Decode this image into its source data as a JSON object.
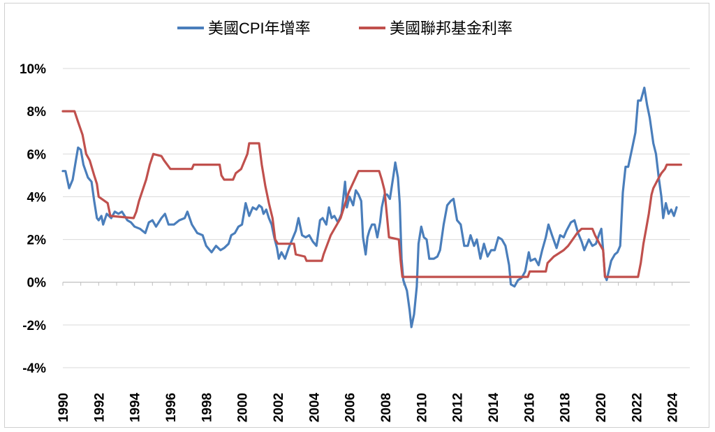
{
  "chart_data": {
    "type": "line",
    "title": "",
    "xlabel": "",
    "ylabel": "",
    "xlim": [
      1990,
      2025
    ],
    "ylim": [
      -4,
      10
    ],
    "y_ticks": [
      -4,
      -2,
      0,
      2,
      4,
      6,
      8,
      10
    ],
    "y_tick_labels": [
      "-4%",
      "-2%",
      "0%",
      "2%",
      "4%",
      "6%",
      "8%",
      "10%"
    ],
    "x_ticks": [
      1990,
      1992,
      1994,
      1996,
      1998,
      2000,
      2002,
      2004,
      2006,
      2008,
      2010,
      2012,
      2014,
      2016,
      2018,
      2020,
      2022,
      2024
    ],
    "x_tick_labels": [
      "1990",
      "1992",
      "1994",
      "1996",
      "1998",
      "2000",
      "2002",
      "2004",
      "2006",
      "2008",
      "2010",
      "2012",
      "2014",
      "2016",
      "2018",
      "2020",
      "2022",
      "2024"
    ],
    "grid": "horizontal",
    "legend": "top-center",
    "series": [
      {
        "name": "美國CPI年增率",
        "color": "#4a7ebb",
        "points": [
          [
            1990.0,
            5.2
          ],
          [
            1990.15,
            5.2
          ],
          [
            1990.35,
            4.4
          ],
          [
            1990.55,
            4.8
          ],
          [
            1990.75,
            5.8
          ],
          [
            1990.85,
            6.3
          ],
          [
            1991.0,
            6.2
          ],
          [
            1991.15,
            5.5
          ],
          [
            1991.4,
            4.9
          ],
          [
            1991.6,
            4.7
          ],
          [
            1991.75,
            3.8
          ],
          [
            1991.9,
            3.0
          ],
          [
            1992.0,
            2.9
          ],
          [
            1992.15,
            3.1
          ],
          [
            1992.25,
            2.7
          ],
          [
            1992.45,
            3.2
          ],
          [
            1992.7,
            3.0
          ],
          [
            1992.9,
            3.3
          ],
          [
            1993.1,
            3.2
          ],
          [
            1993.3,
            3.3
          ],
          [
            1993.6,
            2.9
          ],
          [
            1993.8,
            2.8
          ],
          [
            1994.0,
            2.6
          ],
          [
            1994.3,
            2.5
          ],
          [
            1994.6,
            2.3
          ],
          [
            1994.8,
            2.8
          ],
          [
            1995.0,
            2.9
          ],
          [
            1995.2,
            2.6
          ],
          [
            1995.5,
            3.0
          ],
          [
            1995.7,
            3.2
          ],
          [
            1995.9,
            2.7
          ],
          [
            1996.2,
            2.7
          ],
          [
            1996.5,
            2.9
          ],
          [
            1996.8,
            3.0
          ],
          [
            1996.95,
            3.3
          ],
          [
            1997.2,
            2.7
          ],
          [
            1997.5,
            2.3
          ],
          [
            1997.8,
            2.2
          ],
          [
            1998.0,
            1.7
          ],
          [
            1998.3,
            1.4
          ],
          [
            1998.55,
            1.7
          ],
          [
            1998.8,
            1.5
          ],
          [
            1999.0,
            1.6
          ],
          [
            1999.25,
            1.8
          ],
          [
            1999.4,
            2.2
          ],
          [
            1999.6,
            2.3
          ],
          [
            1999.8,
            2.6
          ],
          [
            2000.0,
            2.7
          ],
          [
            2000.2,
            3.7
          ],
          [
            2000.4,
            3.1
          ],
          [
            2000.6,
            3.5
          ],
          [
            2000.8,
            3.4
          ],
          [
            2000.95,
            3.6
          ],
          [
            2001.1,
            3.5
          ],
          [
            2001.2,
            3.2
          ],
          [
            2001.35,
            3.4
          ],
          [
            2001.5,
            3.0
          ],
          [
            2001.65,
            2.7
          ],
          [
            2001.8,
            2.1
          ],
          [
            2001.95,
            1.6
          ],
          [
            2002.05,
            1.1
          ],
          [
            2002.2,
            1.4
          ],
          [
            2002.4,
            1.1
          ],
          [
            2002.6,
            1.6
          ],
          [
            2002.8,
            2.0
          ],
          [
            2003.0,
            2.4
          ],
          [
            2003.15,
            3.0
          ],
          [
            2003.35,
            2.2
          ],
          [
            2003.55,
            2.1
          ],
          [
            2003.75,
            2.2
          ],
          [
            2003.95,
            1.9
          ],
          [
            2004.15,
            1.7
          ],
          [
            2004.35,
            2.9
          ],
          [
            2004.5,
            3.0
          ],
          [
            2004.7,
            2.7
          ],
          [
            2004.85,
            3.5
          ],
          [
            2005.0,
            3.0
          ],
          [
            2005.15,
            3.1
          ],
          [
            2005.35,
            2.8
          ],
          [
            2005.55,
            3.2
          ],
          [
            2005.75,
            4.7
          ],
          [
            2005.85,
            3.5
          ],
          [
            2006.0,
            4.0
          ],
          [
            2006.2,
            3.6
          ],
          [
            2006.35,
            4.3
          ],
          [
            2006.5,
            4.1
          ],
          [
            2006.65,
            3.8
          ],
          [
            2006.75,
            2.1
          ],
          [
            2006.9,
            1.3
          ],
          [
            2007.0,
            2.1
          ],
          [
            2007.1,
            2.4
          ],
          [
            2007.25,
            2.7
          ],
          [
            2007.4,
            2.7
          ],
          [
            2007.55,
            2.1
          ],
          [
            2007.7,
            2.8
          ],
          [
            2007.8,
            3.5
          ],
          [
            2007.95,
            4.1
          ],
          [
            2008.1,
            4.1
          ],
          [
            2008.25,
            3.9
          ],
          [
            2008.45,
            5.0
          ],
          [
            2008.55,
            5.6
          ],
          [
            2008.7,
            4.9
          ],
          [
            2008.8,
            3.7
          ],
          [
            2008.9,
            1.1
          ],
          [
            2009.0,
            0.1
          ],
          [
            2009.2,
            -0.4
          ],
          [
            2009.35,
            -1.3
          ],
          [
            2009.45,
            -2.1
          ],
          [
            2009.6,
            -1.5
          ],
          [
            2009.75,
            -0.2
          ],
          [
            2009.85,
            1.8
          ],
          [
            2010.0,
            2.6
          ],
          [
            2010.15,
            2.1
          ],
          [
            2010.3,
            2.0
          ],
          [
            2010.45,
            1.1
          ],
          [
            2010.7,
            1.1
          ],
          [
            2010.9,
            1.2
          ],
          [
            2011.05,
            1.5
          ],
          [
            2011.25,
            2.7
          ],
          [
            2011.45,
            3.6
          ],
          [
            2011.65,
            3.8
          ],
          [
            2011.8,
            3.9
          ],
          [
            2012.0,
            2.9
          ],
          [
            2012.2,
            2.7
          ],
          [
            2012.4,
            1.7
          ],
          [
            2012.6,
            1.7
          ],
          [
            2012.75,
            2.2
          ],
          [
            2012.95,
            1.7
          ],
          [
            2013.1,
            2.0
          ],
          [
            2013.3,
            1.1
          ],
          [
            2013.5,
            1.8
          ],
          [
            2013.7,
            1.2
          ],
          [
            2013.9,
            1.5
          ],
          [
            2014.1,
            1.5
          ],
          [
            2014.3,
            2.1
          ],
          [
            2014.5,
            2.0
          ],
          [
            2014.7,
            1.7
          ],
          [
            2014.9,
            0.8
          ],
          [
            2015.0,
            -0.1
          ],
          [
            2015.2,
            -0.2
          ],
          [
            2015.4,
            0.1
          ],
          [
            2015.6,
            0.2
          ],
          [
            2015.8,
            0.5
          ],
          [
            2016.0,
            1.4
          ],
          [
            2016.1,
            1.0
          ],
          [
            2016.35,
            1.1
          ],
          [
            2016.55,
            0.8
          ],
          [
            2016.75,
            1.5
          ],
          [
            2016.95,
            2.1
          ],
          [
            2017.1,
            2.7
          ],
          [
            2017.3,
            2.2
          ],
          [
            2017.55,
            1.6
          ],
          [
            2017.75,
            2.2
          ],
          [
            2017.95,
            2.1
          ],
          [
            2018.1,
            2.4
          ],
          [
            2018.35,
            2.8
          ],
          [
            2018.55,
            2.9
          ],
          [
            2018.75,
            2.3
          ],
          [
            2018.95,
            1.9
          ],
          [
            2019.1,
            1.5
          ],
          [
            2019.35,
            2.0
          ],
          [
            2019.55,
            1.7
          ],
          [
            2019.75,
            1.8
          ],
          [
            2019.95,
            2.3
          ],
          [
            2020.05,
            2.5
          ],
          [
            2020.15,
            1.5
          ],
          [
            2020.25,
            0.3
          ],
          [
            2020.35,
            0.1
          ],
          [
            2020.6,
            1.0
          ],
          [
            2020.8,
            1.3
          ],
          [
            2020.95,
            1.4
          ],
          [
            2021.1,
            1.7
          ],
          [
            2021.25,
            4.2
          ],
          [
            2021.4,
            5.4
          ],
          [
            2021.55,
            5.4
          ],
          [
            2021.75,
            6.2
          ],
          [
            2021.95,
            7.0
          ],
          [
            2022.1,
            8.5
          ],
          [
            2022.25,
            8.5
          ],
          [
            2022.45,
            9.1
          ],
          [
            2022.6,
            8.3
          ],
          [
            2022.75,
            7.7
          ],
          [
            2022.95,
            6.5
          ],
          [
            2023.1,
            6.0
          ],
          [
            2023.25,
            4.9
          ],
          [
            2023.4,
            4.0
          ],
          [
            2023.5,
            3.0
          ],
          [
            2023.65,
            3.7
          ],
          [
            2023.8,
            3.2
          ],
          [
            2023.95,
            3.4
          ],
          [
            2024.1,
            3.1
          ],
          [
            2024.25,
            3.5
          ]
        ]
      },
      {
        "name": "美國聯邦基金利率",
        "color": "#c0504d",
        "points": [
          [
            1990.0,
            8.0
          ],
          [
            1990.65,
            8.0
          ],
          [
            1990.85,
            7.5
          ],
          [
            1991.1,
            6.9
          ],
          [
            1991.3,
            6.0
          ],
          [
            1991.5,
            5.7
          ],
          [
            1991.75,
            5.0
          ],
          [
            1991.9,
            4.6
          ],
          [
            1992.0,
            4.0
          ],
          [
            1992.5,
            3.7
          ],
          [
            1992.65,
            3.1
          ],
          [
            1993.95,
            3.0
          ],
          [
            1994.1,
            3.3
          ],
          [
            1994.25,
            3.8
          ],
          [
            1994.45,
            4.3
          ],
          [
            1994.65,
            4.8
          ],
          [
            1994.85,
            5.5
          ],
          [
            1995.05,
            6.0
          ],
          [
            1995.5,
            5.9
          ],
          [
            1995.65,
            5.7
          ],
          [
            1996.0,
            5.3
          ],
          [
            1997.2,
            5.3
          ],
          [
            1997.3,
            5.5
          ],
          [
            1998.75,
            5.5
          ],
          [
            1998.85,
            5.0
          ],
          [
            1999.0,
            4.8
          ],
          [
            1999.5,
            4.8
          ],
          [
            1999.65,
            5.1
          ],
          [
            1999.95,
            5.3
          ],
          [
            2000.1,
            5.6
          ],
          [
            2000.3,
            6.0
          ],
          [
            2000.4,
            6.5
          ],
          [
            2000.95,
            6.5
          ],
          [
            2001.1,
            5.5
          ],
          [
            2001.3,
            4.5
          ],
          [
            2001.5,
            3.7
          ],
          [
            2001.7,
            3.0
          ],
          [
            2001.85,
            2.0
          ],
          [
            2002.0,
            1.8
          ],
          [
            2002.9,
            1.8
          ],
          [
            2003.0,
            1.3
          ],
          [
            2003.5,
            1.2
          ],
          [
            2003.6,
            1.0
          ],
          [
            2004.45,
            1.0
          ],
          [
            2004.55,
            1.3
          ],
          [
            2004.95,
            2.2
          ],
          [
            2005.5,
            3.0
          ],
          [
            2005.95,
            4.2
          ],
          [
            2006.5,
            5.2
          ],
          [
            2007.65,
            5.2
          ],
          [
            2007.8,
            4.8
          ],
          [
            2007.95,
            4.3
          ],
          [
            2008.1,
            3.0
          ],
          [
            2008.2,
            2.1
          ],
          [
            2008.75,
            2.0
          ],
          [
            2008.85,
            1.0
          ],
          [
            2008.95,
            0.25
          ],
          [
            2015.95,
            0.25
          ],
          [
            2016.05,
            0.5
          ],
          [
            2016.95,
            0.5
          ],
          [
            2017.05,
            0.9
          ],
          [
            2017.4,
            1.2
          ],
          [
            2017.95,
            1.5
          ],
          [
            2018.2,
            1.7
          ],
          [
            2018.45,
            2.0
          ],
          [
            2018.7,
            2.3
          ],
          [
            2018.95,
            2.5
          ],
          [
            2019.55,
            2.5
          ],
          [
            2019.7,
            2.2
          ],
          [
            2019.95,
            1.8
          ],
          [
            2020.15,
            1.5
          ],
          [
            2020.25,
            0.25
          ],
          [
            2022.1,
            0.25
          ],
          [
            2022.25,
            0.9
          ],
          [
            2022.4,
            1.8
          ],
          [
            2022.55,
            2.5
          ],
          [
            2022.7,
            3.2
          ],
          [
            2022.85,
            4.1
          ],
          [
            2022.95,
            4.4
          ],
          [
            2023.2,
            4.8
          ],
          [
            2023.4,
            5.1
          ],
          [
            2023.6,
            5.3
          ],
          [
            2023.7,
            5.5
          ],
          [
            2024.5,
            5.5
          ]
        ]
      }
    ]
  }
}
